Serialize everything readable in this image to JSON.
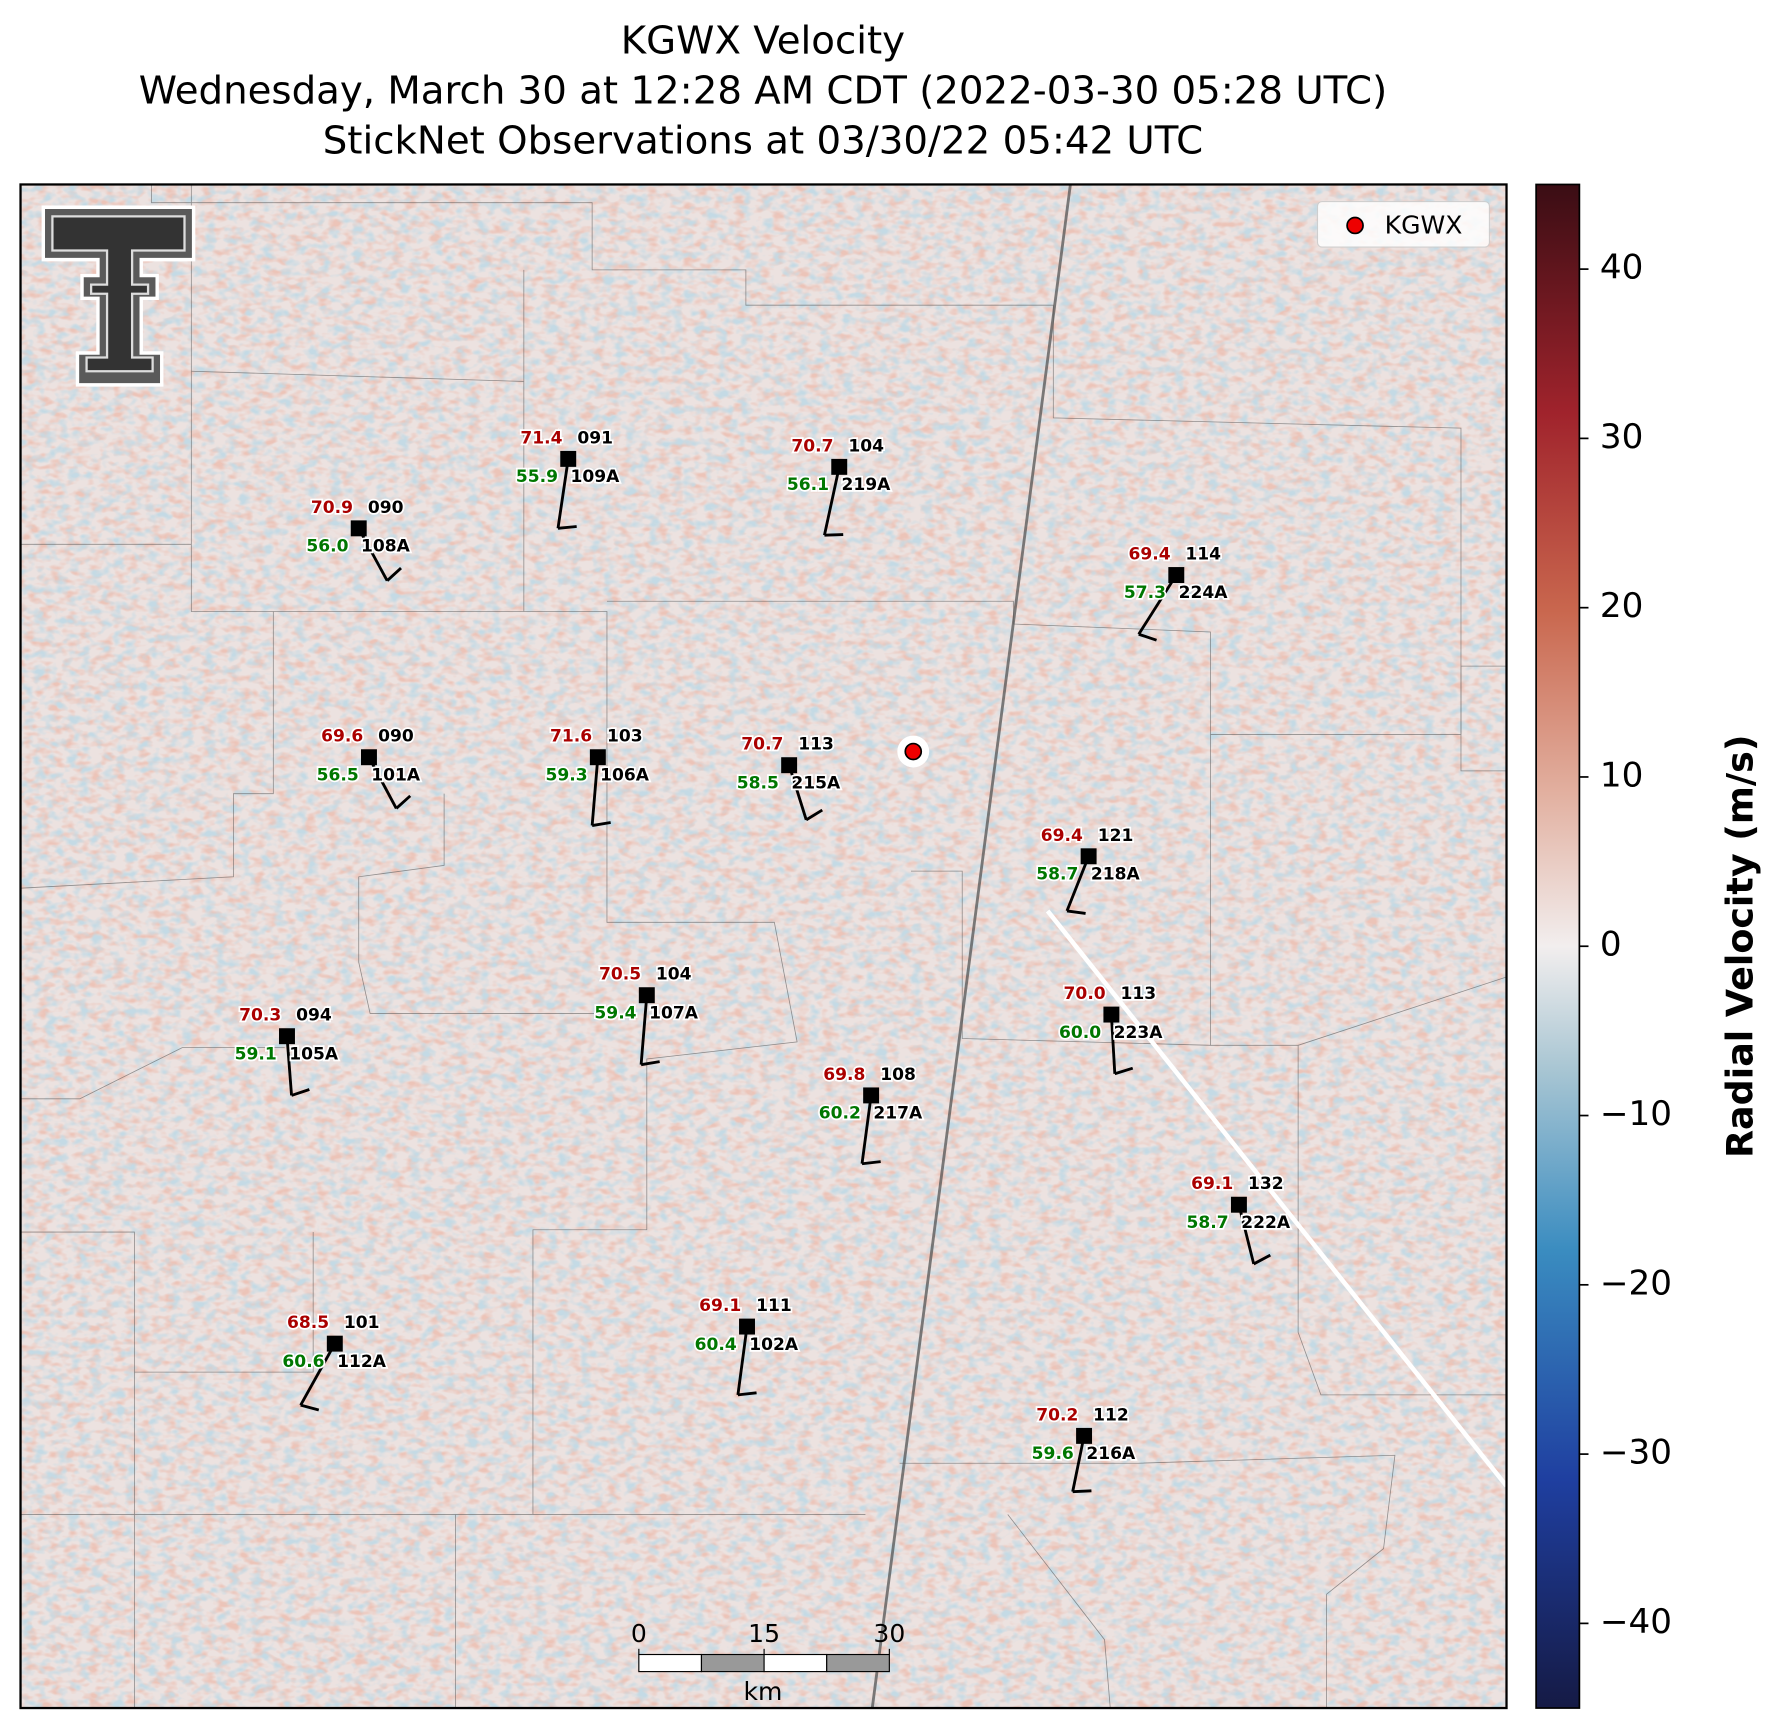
{
  "title": {
    "line1": "KGWX Velocity",
    "line2": "Wednesday, March 30 at 12:28 AM CDT (2022-03-30 05:28 UTC)",
    "line3": "StickNet Observations at 03/30/22 05:42 UTC"
  },
  "legend": {
    "label": "KGWX"
  },
  "colorbar": {
    "label": "Radial Velocity (m/s)",
    "range": [
      -45,
      45
    ],
    "ticks": [
      40,
      30,
      20,
      10,
      0,
      {
        "value": -10,
        "label": "−10"
      },
      {
        "value": -20,
        "label": "−20"
      },
      {
        "value": -30,
        "label": "−30"
      },
      {
        "value": -40,
        "label": "−40"
      }
    ]
  },
  "scale_bar": {
    "ticks": [
      0,
      15,
      30
    ],
    "unit": "km"
  },
  "stations": [
    {
      "temp": "70.9",
      "value": "090",
      "dewpoint": "56.0",
      "id": "108A"
    },
    {
      "temp": "71.4",
      "value": "091",
      "dewpoint": "55.9",
      "id": "109A"
    },
    {
      "temp": "70.7",
      "value": "104",
      "dewpoint": "56.1",
      "id": "219A"
    },
    {
      "temp": "69.4",
      "value": "114",
      "dewpoint": "57.3",
      "id": "224A"
    },
    {
      "temp": "69.6",
      "value": "090",
      "dewpoint": "56.5",
      "id": "101A"
    },
    {
      "temp": "71.6",
      "value": "103",
      "dewpoint": "59.3",
      "id": "106A"
    },
    {
      "temp": "70.7",
      "value": "113",
      "dewpoint": "58.5",
      "id": "215A"
    },
    {
      "temp": "69.4",
      "value": "121",
      "dewpoint": "58.7",
      "id": "218A"
    },
    {
      "temp": "70.5",
      "value": "104",
      "dewpoint": "59.4",
      "id": "107A"
    },
    {
      "temp": "70.3",
      "value": "094",
      "dewpoint": "59.1",
      "id": "105A"
    },
    {
      "temp": "70.0",
      "value": "113",
      "dewpoint": "60.0",
      "id": "223A"
    },
    {
      "temp": "69.8",
      "value": "108",
      "dewpoint": "60.2",
      "id": "217A"
    },
    {
      "temp": "69.1",
      "value": "132",
      "dewpoint": "58.7",
      "id": "222A"
    },
    {
      "temp": "68.5",
      "value": "101",
      "dewpoint": "60.6",
      "id": "112A"
    },
    {
      "temp": "69.1",
      "value": "111",
      "dewpoint": "60.4",
      "id": "102A"
    },
    {
      "temp": "70.2",
      "value": "112",
      "dewpoint": "59.6",
      "id": "216A"
    }
  ]
}
